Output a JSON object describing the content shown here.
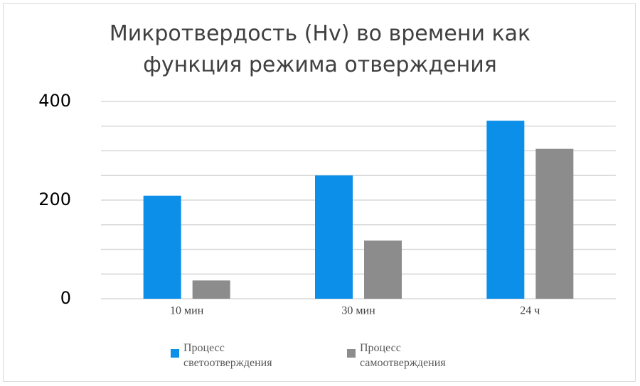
{
  "chart_data": {
    "type": "bar",
    "title": "Микротвердость (Hv) во времени как функция режима отверждения",
    "categories": [
      "10 мин",
      "30 мин",
      "24 ч"
    ],
    "series": [
      {
        "name": "Процесс светоотверждения",
        "color": "#0b8fe8",
        "values": [
          209,
          250,
          361
        ]
      },
      {
        "name": "Процесс самоотверждения",
        "color": "#8c8c8c",
        "values": [
          37,
          118,
          304
        ]
      }
    ],
    "ylim": [
      0,
      400
    ],
    "yticks": [
      0,
      200,
      400
    ],
    "minor_yticks": [
      50,
      100,
      150,
      250,
      300,
      350
    ],
    "grid": true,
    "legend": "bottom"
  }
}
